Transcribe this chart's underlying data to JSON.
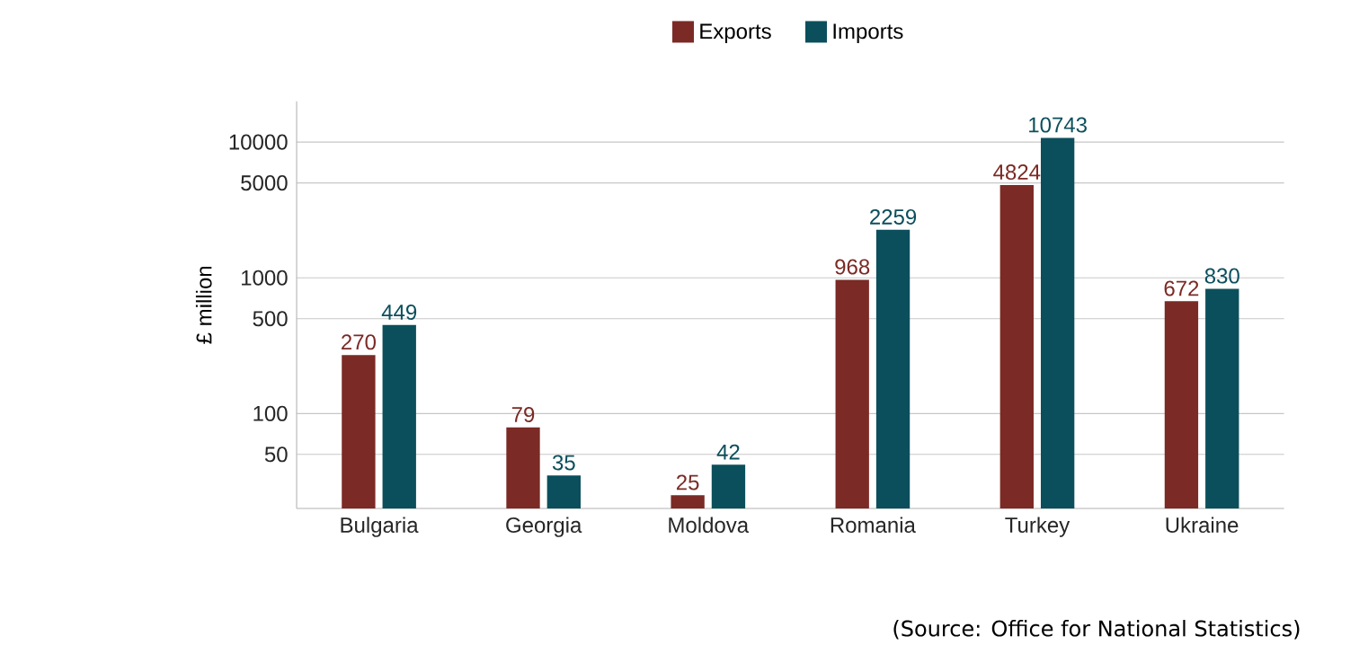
{
  "chart_data": {
    "type": "bar",
    "categories": [
      "Bulgaria",
      "Georgia",
      "Moldova",
      "Romania",
      "Turkey",
      "Ukraine"
    ],
    "series": [
      {
        "name": "Exports",
        "color": "#7b2a25",
        "values": [
          270,
          79,
          25,
          968,
          4824,
          672
        ]
      },
      {
        "name": "Imports",
        "color": "#0b4f5c",
        "values": [
          449,
          35,
          42,
          2259,
          10743,
          830
        ]
      }
    ],
    "ylabel": "£ million",
    "log": "y",
    "ylim": [
      20,
      20000
    ],
    "yticks": [
      50,
      100,
      500,
      1000,
      5000,
      10000
    ],
    "grid": "y",
    "legend": "top",
    "data_labels": true,
    "annotations": [
      "(Source: Office for National Statistics)"
    ]
  }
}
